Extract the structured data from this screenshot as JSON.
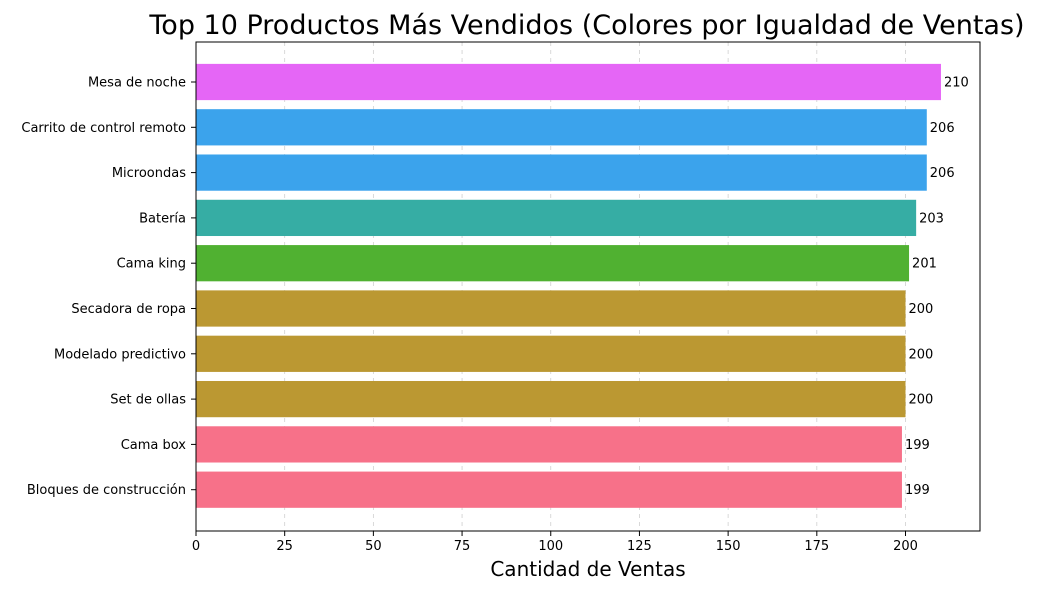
{
  "chart_data": {
    "type": "bar",
    "orientation": "horizontal",
    "title": "Top 10 Productos Más Vendidos (Colores por Igualdad de Ventas)",
    "xlabel": "Cantidad de Ventas",
    "ylabel": "",
    "xlim": [
      0,
      221
    ],
    "xticks": [
      0,
      25,
      50,
      75,
      100,
      125,
      150,
      175,
      200
    ],
    "grid": "x-dashed",
    "categories": [
      "Mesa de noche",
      "Carrito de control remoto",
      "Microondas",
      "Batería",
      "Cama king",
      "Secadora de ropa",
      "Modelado predictivo",
      "Set de ollas",
      "Cama box",
      "Bloques de construcción"
    ],
    "values": [
      210,
      206,
      206,
      203,
      201,
      200,
      200,
      200,
      199,
      199
    ],
    "colors": [
      "#e566f6",
      "#3ba3ec",
      "#3ba3ec",
      "#36ada4",
      "#50b131",
      "#bb9832",
      "#bb9832",
      "#bb9832",
      "#f77189",
      "#f77189"
    ]
  }
}
